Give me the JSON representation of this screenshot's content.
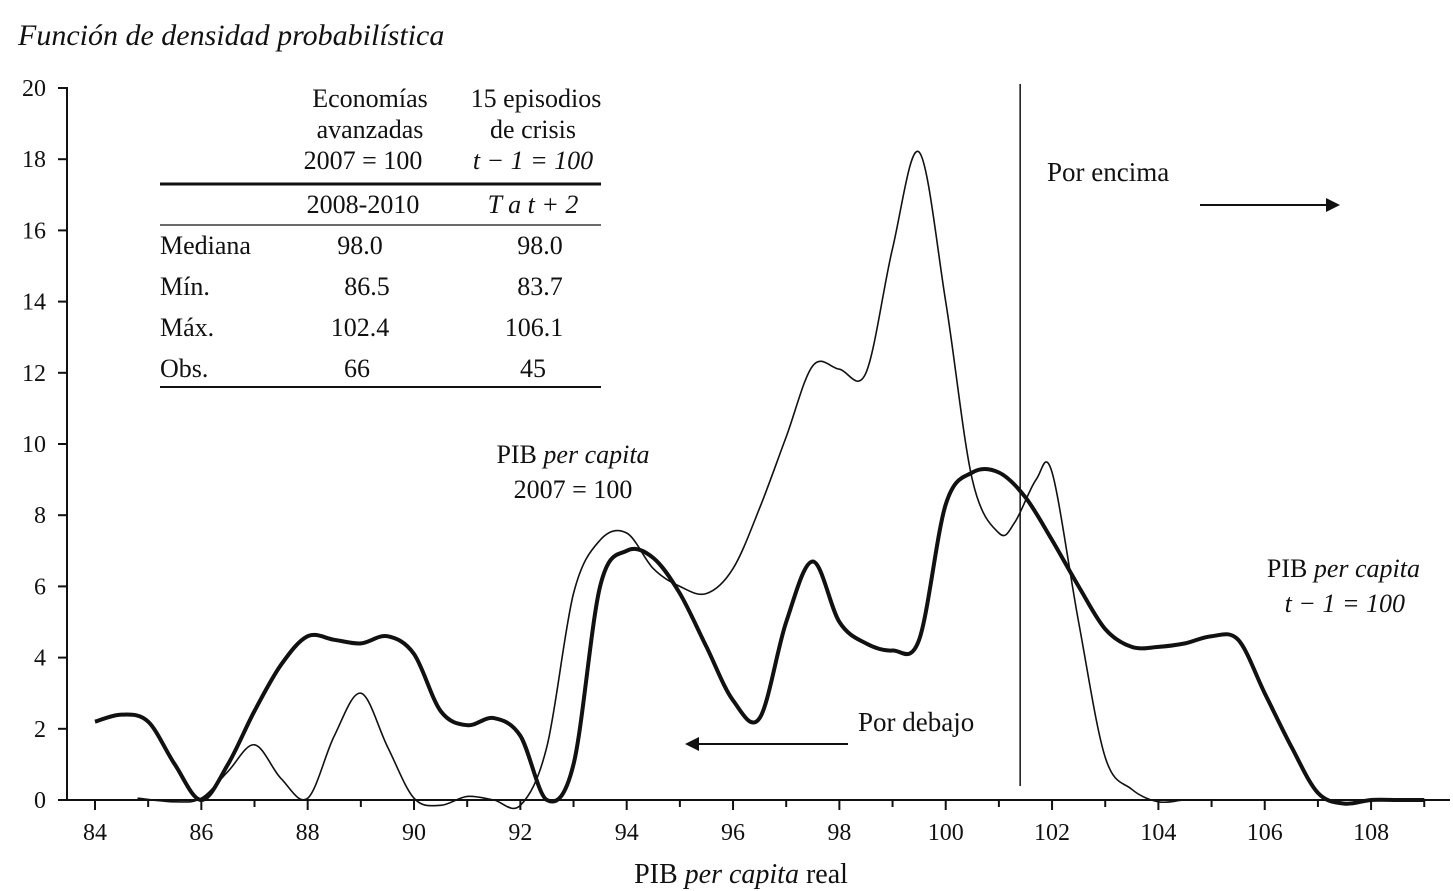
{
  "chart_data": {
    "type": "line",
    "title": "Función de densidad probabilística",
    "xlabel": {
      "prefix": "PIB ",
      "italic": "per capita",
      "suffix": " real"
    },
    "ylabel": "",
    "xlim": [
      83.5,
      109.5
    ],
    "ylim": [
      0,
      20
    ],
    "xticks": [
      "84",
      "86",
      "88",
      "90",
      "92",
      "94",
      "96",
      "98",
      "100",
      "102",
      "104",
      "106",
      "108"
    ],
    "yticks": [
      "0",
      "2",
      "4",
      "6",
      "8",
      "10",
      "12",
      "14",
      "16",
      "18",
      "20"
    ],
    "grid": false,
    "vline": {
      "x": 101.4
    },
    "series": [
      {
        "name": "PIB per capita 2007 = 100",
        "style": "thin",
        "x": [
          84.8,
          85.5,
          86.0,
          86.5,
          87.0,
          87.5,
          88.0,
          88.5,
          89.0,
          89.5,
          90.0,
          90.5,
          91.0,
          91.5,
          92.0,
          92.5,
          93.0,
          93.5,
          94.0,
          94.5,
          95.0,
          95.5,
          96.0,
          96.5,
          97.0,
          97.5,
          98.0,
          98.5,
          99.0,
          99.5,
          100.0,
          100.5,
          101.0,
          101.3,
          101.7,
          102.0,
          102.5,
          103.0,
          103.5,
          104.0,
          104.5,
          105.0
        ],
        "values": [
          0.05,
          -0.05,
          0.05,
          0.8,
          1.55,
          0.6,
          0.05,
          1.8,
          3.0,
          1.5,
          0.05,
          -0.15,
          0.1,
          0.0,
          -0.15,
          1.5,
          5.8,
          7.3,
          7.5,
          6.5,
          6.0,
          5.8,
          6.5,
          8.2,
          10.2,
          12.2,
          12.1,
          12.0,
          15.5,
          18.2,
          14.0,
          9.0,
          7.5,
          7.8,
          9.0,
          9.2,
          5.0,
          1.2,
          0.3,
          -0.05,
          0.0,
          0.0
        ]
      },
      {
        "name": "PIB per capita t − 1 = 100",
        "style": "thick",
        "x": [
          84.0,
          84.5,
          85.0,
          85.5,
          86.0,
          86.5,
          87.0,
          87.5,
          88.0,
          88.5,
          89.0,
          89.5,
          90.0,
          90.5,
          91.0,
          91.5,
          92.0,
          92.5,
          93.0,
          93.5,
          94.0,
          94.5,
          95.0,
          95.5,
          96.0,
          96.5,
          97.0,
          97.5,
          98.0,
          98.5,
          99.0,
          99.5,
          100.0,
          100.5,
          101.0,
          101.5,
          102.0,
          102.5,
          103.0,
          103.5,
          104.0,
          104.5,
          105.0,
          105.5,
          106.0,
          106.5,
          107.0,
          107.5,
          108.0,
          108.5,
          109.0
        ],
        "values": [
          2.2,
          2.4,
          2.2,
          1.0,
          0.0,
          1.0,
          2.5,
          3.8,
          4.6,
          4.5,
          4.4,
          4.6,
          4.1,
          2.5,
          2.1,
          2.3,
          1.8,
          0.0,
          1.0,
          6.0,
          7.0,
          6.8,
          5.8,
          4.3,
          2.8,
          2.3,
          5.0,
          6.7,
          5.0,
          4.4,
          4.2,
          4.5,
          8.3,
          9.2,
          9.2,
          8.5,
          7.3,
          6.0,
          4.8,
          4.3,
          4.3,
          4.4,
          4.6,
          4.5,
          3.0,
          1.5,
          0.2,
          -0.1,
          0.0,
          0.0,
          0.0
        ]
      }
    ],
    "annotations": {
      "por_encima": "Por encima",
      "por_debajo": "Por debajo",
      "thin_label_line1_prefix": "PIB ",
      "thin_label_line1_italic": "per capita",
      "thin_label_line2": "2007 = 100",
      "thick_label_line1_prefix": "PIB ",
      "thick_label_line1_italic": "per capita",
      "thick_label_line2": "t − 1 = 100"
    },
    "inset_table": {
      "col1_header": [
        "Economías",
        "avanzadas",
        "2007 = 100"
      ],
      "col2_header": [
        "15 episodios",
        "de crisis",
        "t − 1 = 100"
      ],
      "sub_header": [
        "2008-2010",
        "T a t + 2"
      ],
      "rows": [
        {
          "label": "Mediana",
          "col1": "98.0",
          "col2": "98.0"
        },
        {
          "label": "Mín.",
          "col1": "86.5",
          "col2": "83.7"
        },
        {
          "label": "Máx.",
          "col1": "102.4",
          "col2": "106.1"
        },
        {
          "label": "Obs.",
          "col1": "66",
          "col2": "45"
        }
      ]
    }
  }
}
